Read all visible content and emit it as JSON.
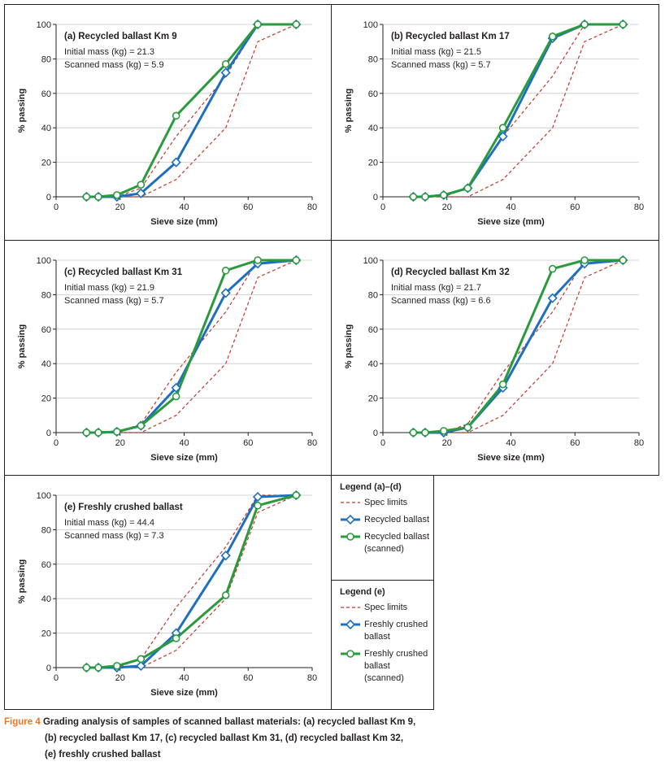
{
  "chart_data": [
    {
      "type": "line",
      "title": "(a) Recycled ballast Km 9",
      "annotations": [
        "Initial mass (kg) = 21.3",
        "Scanned mass (kg) = 5.9"
      ],
      "xlabel": "Sieve size (mm)",
      "ylabel": "% passing",
      "xlim": [
        0,
        80
      ],
      "xticks": [
        0,
        20,
        40,
        60,
        80
      ],
      "ylim": [
        0,
        100
      ],
      "yticks": [
        0,
        20,
        40,
        60,
        80,
        100
      ],
      "grid": true,
      "legend_title": "Legend (a)–(d)",
      "x": [
        9.5,
        13.2,
        19,
        26.5,
        37.5,
        53,
        63,
        75
      ],
      "series": [
        {
          "name": "Spec limits",
          "color": "#c0392b",
          "dashed": true,
          "lower": [
            0,
            0,
            0,
            0,
            10,
            40,
            90,
            100
          ],
          "upper": [
            0,
            0,
            0,
            5,
            35,
            70,
            100,
            100
          ]
        },
        {
          "name": "Recycled ballast",
          "color": "#1f6fbf",
          "marker": "diamond",
          "values": [
            0,
            0,
            0,
            2,
            20,
            72,
            100,
            100
          ]
        },
        {
          "name": "Recycled ballast (scanned)",
          "color": "#2a9a3c",
          "marker": "circle",
          "values": [
            0,
            0,
            1,
            7,
            47,
            77,
            100,
            100
          ]
        }
      ]
    },
    {
      "type": "line",
      "title": "(b) Recycled ballast Km 17",
      "annotations": [
        "Initial mass (kg) = 21.5",
        "Scanned mass (kg) = 5.7"
      ],
      "xlabel": "Sieve size (mm)",
      "ylabel": "% passing",
      "xlim": [
        0,
        80
      ],
      "xticks": [
        0,
        20,
        40,
        60,
        80
      ],
      "ylim": [
        0,
        100
      ],
      "yticks": [
        0,
        20,
        40,
        60,
        80,
        100
      ],
      "grid": true,
      "x": [
        9.5,
        13.2,
        19,
        26.5,
        37.5,
        53,
        63,
        75
      ],
      "series": [
        {
          "name": "Spec limits",
          "color": "#c0392b",
          "dashed": true,
          "lower": [
            0,
            0,
            0,
            0,
            10,
            40,
            90,
            100
          ],
          "upper": [
            0,
            0,
            0,
            5,
            35,
            70,
            100,
            100
          ]
        },
        {
          "name": "Recycled ballast",
          "color": "#1f6fbf",
          "marker": "diamond",
          "values": [
            0,
            0,
            1,
            5,
            35,
            92,
            100,
            100
          ]
        },
        {
          "name": "Recycled ballast (scanned)",
          "color": "#2a9a3c",
          "marker": "circle",
          "values": [
            0,
            0,
            1,
            5,
            40,
            93,
            100,
            100
          ]
        }
      ]
    },
    {
      "type": "line",
      "title": "(c) Recycled ballast Km 31",
      "annotations": [
        "Initial mass (kg) = 21.9",
        "Scanned mass (kg) = 5.7"
      ],
      "xlabel": "Sieve size (mm)",
      "ylabel": "% passing",
      "xlim": [
        0,
        80
      ],
      "xticks": [
        0,
        20,
        40,
        60,
        80
      ],
      "ylim": [
        0,
        100
      ],
      "yticks": [
        0,
        20,
        40,
        60,
        80,
        100
      ],
      "grid": true,
      "x": [
        9.5,
        13.2,
        19,
        26.5,
        37.5,
        53,
        63,
        75
      ],
      "series": [
        {
          "name": "Spec limits",
          "color": "#c0392b",
          "dashed": true,
          "lower": [
            0,
            0,
            0,
            0,
            10,
            40,
            90,
            100
          ],
          "upper": [
            0,
            0,
            0,
            5,
            35,
            70,
            100,
            100
          ]
        },
        {
          "name": "Recycled ballast",
          "color": "#1f6fbf",
          "marker": "diamond",
          "values": [
            0,
            0,
            0.5,
            4,
            26,
            81,
            98,
            100
          ]
        },
        {
          "name": "Recycled ballast (scanned)",
          "color": "#2a9a3c",
          "marker": "circle",
          "values": [
            0,
            0,
            0.5,
            4,
            21,
            94,
            100,
            100
          ]
        }
      ]
    },
    {
      "type": "line",
      "title": "(d) Recycled ballast Km 32",
      "annotations": [
        "Initial mass (kg) = 21.7",
        "Scanned mass (kg) = 6.6"
      ],
      "xlabel": "Sieve size (mm)",
      "ylabel": "% passing",
      "xlim": [
        0,
        80
      ],
      "xticks": [
        0,
        20,
        40,
        60,
        80
      ],
      "ylim": [
        0,
        100
      ],
      "yticks": [
        0,
        20,
        40,
        60,
        80,
        100
      ],
      "grid": true,
      "x": [
        9.5,
        13.2,
        19,
        26.5,
        37.5,
        53,
        63,
        75
      ],
      "series": [
        {
          "name": "Spec limits",
          "color": "#c0392b",
          "dashed": true,
          "lower": [
            0,
            0,
            0,
            0,
            10,
            40,
            90,
            100
          ],
          "upper": [
            0,
            0,
            0,
            5,
            35,
            70,
            100,
            100
          ]
        },
        {
          "name": "Recycled ballast",
          "color": "#1f6fbf",
          "marker": "diamond",
          "values": [
            0,
            0,
            0,
            3,
            26,
            78,
            98,
            100
          ]
        },
        {
          "name": "Recycled ballast (scanned)",
          "color": "#2a9a3c",
          "marker": "circle",
          "values": [
            0,
            0,
            1,
            3,
            28,
            95,
            100,
            100
          ]
        }
      ]
    },
    {
      "type": "line",
      "title": "(e) Freshly crushed ballast",
      "annotations": [
        "Initial mass (kg) = 44.4",
        "Scanned mass (kg) = 7.3"
      ],
      "xlabel": "Sieve size (mm)",
      "ylabel": "% passing",
      "xlim": [
        0,
        80
      ],
      "xticks": [
        0,
        20,
        40,
        60,
        80
      ],
      "ylim": [
        0,
        100
      ],
      "yticks": [
        0,
        20,
        40,
        60,
        80,
        100
      ],
      "grid": true,
      "legend_title": "Legend (e)",
      "x": [
        9.5,
        13.2,
        19,
        26.5,
        37.5,
        53,
        63,
        75
      ],
      "series": [
        {
          "name": "Spec limits",
          "color": "#c0392b",
          "dashed": true,
          "lower": [
            0,
            0,
            0,
            0,
            10,
            40,
            90,
            100
          ],
          "upper": [
            0,
            0,
            0,
            5,
            35,
            70,
            100,
            100
          ]
        },
        {
          "name": "Freshly crushed ballast",
          "color": "#1f6fbf",
          "marker": "diamond",
          "values": [
            0,
            0,
            0,
            1,
            20,
            65,
            99,
            100
          ]
        },
        {
          "name": "Freshly crushed ballast (scanned)",
          "color": "#2a9a3c",
          "marker": "circle",
          "values": [
            0,
            0,
            1,
            5,
            17,
            42,
            94,
            100
          ]
        }
      ]
    }
  ],
  "caption": {
    "label": "Figure 4",
    "lines": [
      "Grading analysis of samples of scanned ballast materials: (a) recycled ballast Km 9,",
      "(b) recycled ballast Km 17, (c) recycled ballast Km 31, (d) recycled ballast Km 32,",
      "(e) freshly crushed ballast"
    ]
  }
}
